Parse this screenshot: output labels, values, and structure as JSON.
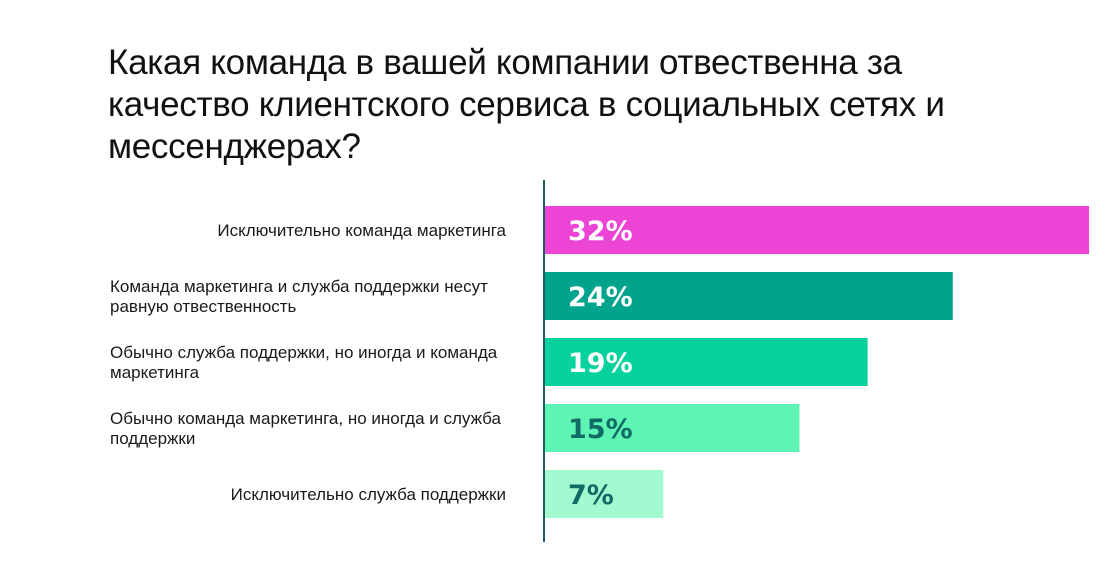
{
  "chart_data": {
    "type": "bar",
    "orientation": "horizontal",
    "title": "Какая команда в вашей компании отвественна за качество клиентского сервиса в социальных сетях и мессенджерах?",
    "categories": [
      [
        "Исключительно команда маркетинга"
      ],
      [
        "Команда маркетинга и служба поддержки несут",
        "равную отвественность"
      ],
      [
        "Обычно служба поддержки, но иногда и команда",
        "маркетинга"
      ],
      [
        "Обычно команда маркетинга, но иногда и служба",
        "поддержки"
      ],
      [
        "Исключительно служба поддержки"
      ]
    ],
    "values": [
      32,
      24,
      19,
      15,
      7
    ],
    "value_labels": [
      "32%",
      "24%",
      "19%",
      "15%",
      "7%"
    ],
    "xlim": [
      0,
      32
    ],
    "grid": false,
    "colors": [
      "#ec45d6",
      "#00a38b",
      "#05d29c",
      "#5ef5b4",
      "#a2fbd0"
    ],
    "label_colors": [
      "#ffffff",
      "#ffffff",
      "#ffffff",
      "#106a66",
      "#106a66"
    ],
    "axis_color": "#1e5a63"
  }
}
